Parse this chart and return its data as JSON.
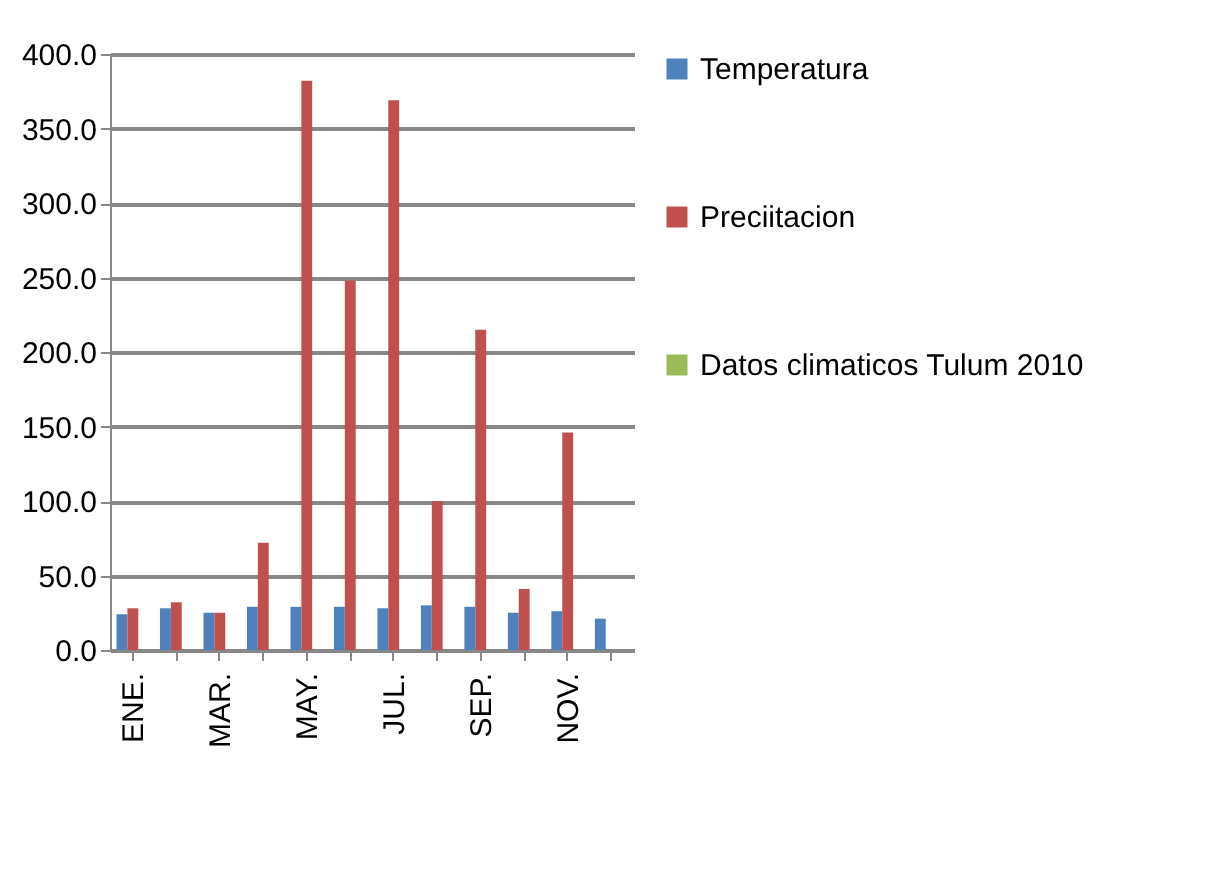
{
  "chart_data": {
    "type": "bar",
    "categories": [
      "ENE.",
      null,
      "MAR.",
      null,
      "MAY.",
      null,
      "JUL.",
      null,
      "SEP.",
      null,
      "NOV.",
      null
    ],
    "series": [
      {
        "name": "Temperatura",
        "color": "#4f81bd",
        "values": [
          24,
          28,
          25,
          29,
          29,
          29,
          28,
          30,
          29,
          25,
          26,
          21
        ]
      },
      {
        "name": "Preciitacion",
        "color": "#c0504d",
        "values": [
          28,
          32,
          25,
          72,
          382,
          248,
          369,
          100,
          215,
          41,
          146,
          null
        ]
      },
      {
        "name": "Datos climaticos Tulum 2010",
        "color": "#9bbb59",
        "values": [
          null,
          null,
          null,
          null,
          null,
          null,
          null,
          null,
          null,
          null,
          null,
          null
        ]
      }
    ],
    "ylim": [
      0,
      400
    ],
    "yticks": [
      {
        "value": 0,
        "label": "0.0"
      },
      {
        "value": 50,
        "label": "50.0"
      },
      {
        "value": 100,
        "label": "100.0"
      },
      {
        "value": 150,
        "label": "150.0"
      },
      {
        "value": 200,
        "label": "200.0"
      },
      {
        "value": 250,
        "label": "250.0"
      },
      {
        "value": 300,
        "label": "300.0"
      },
      {
        "value": 350,
        "label": "350.0"
      },
      {
        "value": 400,
        "label": "400.0"
      }
    ],
    "grid": "y",
    "legend": "right"
  }
}
